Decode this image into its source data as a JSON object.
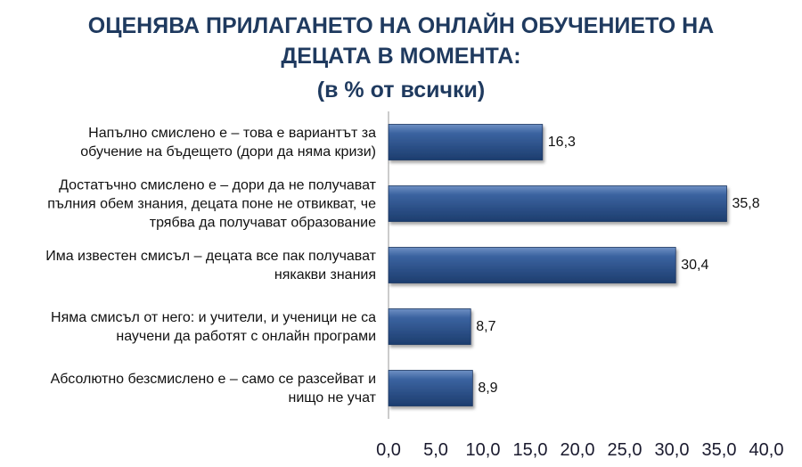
{
  "chart_data": {
    "type": "bar",
    "orientation": "horizontal",
    "title_lines": [
      "ОЦЕНЯВА ПРИЛАГАНЕТО НА ОНЛАЙН ОБУЧЕНИЕТО НА",
      "ДЕЦАТА В МОМЕНТА:"
    ],
    "subtitle": "(в % от всички)",
    "categories": [
      [
        "Напълно смислено е – това е вариантът за",
        "обучение на бъдещето (дори да няма кризи)"
      ],
      [
        "Достатъчно смислено е – дори да не получават",
        "пълния обем знания, децата поне не отвикват, че",
        "трябва да получават образование"
      ],
      [
        "Има известен смисъл – децата все пак получават",
        "някакви знания"
      ],
      [
        "Няма смисъл от него: и учители, и ученици не са",
        "научени да работят с онлайн програми"
      ],
      [
        "Абсолютно безсмислено е – само се разсейват и",
        "нищо не учат"
      ]
    ],
    "values": [
      16.3,
      35.8,
      30.4,
      8.7,
      8.9
    ],
    "value_labels": [
      "16,3",
      "35,8",
      "30,4",
      "8,7",
      "8,9"
    ],
    "x_ticks": [
      "0,0",
      "5,0",
      "10,0",
      "15,0",
      "20,0",
      "25,0",
      "30,0",
      "35,0",
      "40,0"
    ],
    "xlim": [
      0,
      40
    ],
    "grid": false,
    "legend": "none",
    "bar_color": "#2e5791",
    "title_color": "#1f3a5f"
  }
}
